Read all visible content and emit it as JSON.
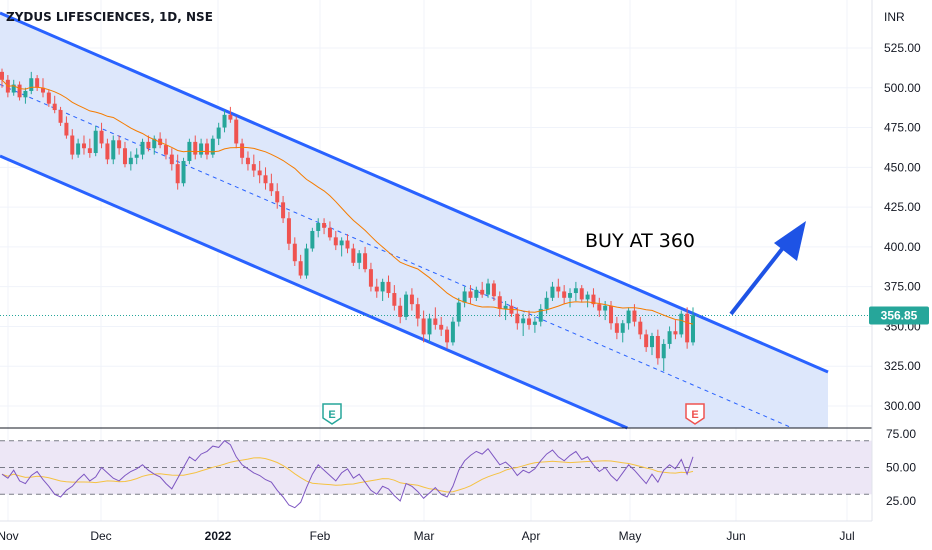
{
  "header": {
    "symbol_title": "ZYDUS LIFESCIENCES, 1D, NSE",
    "currency": "INR"
  },
  "annotation": {
    "text": "BUY AT 360"
  },
  "colors": {
    "up": "#26a69a",
    "down": "#ef5350",
    "channel": "#2962ff",
    "channel_fill": "#dde7fb",
    "ma": "#f57c00",
    "rsi": "#7e57c2",
    "rsi_ma": "#f5c242",
    "arrow": "#1e53e5",
    "price_tag": "#26a69a"
  },
  "chart_data": {
    "type": "candlestick",
    "title": "ZYDUS LIFESCIENCES, 1D, NSE",
    "ylabel": "INR",
    "ylim": [
      280,
      540
    ],
    "y_ticks": [
      "525.00",
      "500.00",
      "475.00",
      "450.00",
      "425.00",
      "400.00",
      "375.00",
      "350.00",
      "325.00",
      "300.00"
    ],
    "x_ticks": [
      "Nov",
      "Dec",
      "2022",
      "Feb",
      "Mar",
      "Apr",
      "May",
      "Jun",
      "Jul"
    ],
    "last_price": "356.85",
    "grid": true,
    "ohlc": [
      [
        510,
        512,
        500,
        505
      ],
      [
        505,
        508,
        494,
        497
      ],
      [
        497,
        505,
        495,
        502
      ],
      [
        502,
        504,
        492,
        494
      ],
      [
        494,
        500,
        490,
        498
      ],
      [
        498,
        510,
        496,
        506
      ],
      [
        506,
        508,
        498,
        500
      ],
      [
        500,
        506,
        494,
        497
      ],
      [
        497,
        499,
        488,
        490
      ],
      [
        490,
        495,
        484,
        486
      ],
      [
        486,
        488,
        476,
        478
      ],
      [
        478,
        482,
        468,
        470
      ],
      [
        470,
        474,
        455,
        458
      ],
      [
        458,
        468,
        456,
        465
      ],
      [
        465,
        470,
        458,
        462
      ],
      [
        462,
        468,
        456,
        459
      ],
      [
        459,
        476,
        457,
        473
      ],
      [
        473,
        478,
        462,
        465
      ],
      [
        465,
        468,
        452,
        455
      ],
      [
        455,
        470,
        452,
        467
      ],
      [
        467,
        470,
        458,
        462
      ],
      [
        462,
        466,
        450,
        452
      ],
      [
        452,
        460,
        448,
        456
      ],
      [
        456,
        462,
        452,
        458
      ],
      [
        458,
        468,
        455,
        466
      ],
      [
        466,
        470,
        460,
        462
      ],
      [
        462,
        470,
        458,
        468
      ],
      [
        468,
        472,
        462,
        464
      ],
      [
        464,
        468,
        455,
        458
      ],
      [
        458,
        462,
        448,
        452
      ],
      [
        452,
        458,
        436,
        440
      ],
      [
        440,
        456,
        438,
        454
      ],
      [
        454,
        468,
        452,
        466
      ],
      [
        466,
        470,
        455,
        458
      ],
      [
        458,
        468,
        456,
        465
      ],
      [
        465,
        468,
        455,
        458
      ],
      [
        458,
        470,
        456,
        468
      ],
      [
        468,
        478,
        464,
        475
      ],
      [
        475,
        486,
        472,
        483
      ],
      [
        483,
        488,
        478,
        480
      ],
      [
        480,
        482,
        462,
        465
      ],
      [
        465,
        468,
        452,
        456
      ],
      [
        456,
        460,
        448,
        452
      ],
      [
        452,
        458,
        444,
        448
      ],
      [
        448,
        454,
        440,
        445
      ],
      [
        445,
        450,
        436,
        440
      ],
      [
        440,
        446,
        432,
        435
      ],
      [
        435,
        440,
        424,
        428
      ],
      [
        428,
        432,
        415,
        418
      ],
      [
        418,
        422,
        398,
        402
      ],
      [
        402,
        406,
        388,
        391
      ],
      [
        391,
        395,
        380,
        382
      ],
      [
        382,
        402,
        380,
        399
      ],
      [
        399,
        412,
        397,
        410
      ],
      [
        410,
        418,
        406,
        415
      ],
      [
        415,
        418,
        408,
        412
      ],
      [
        412,
        416,
        404,
        406
      ],
      [
        406,
        410,
        398,
        401
      ],
      [
        401,
        406,
        394,
        404
      ],
      [
        404,
        408,
        396,
        399
      ],
      [
        399,
        402,
        388,
        390
      ],
      [
        390,
        398,
        386,
        396
      ],
      [
        396,
        400,
        384,
        386
      ],
      [
        386,
        390,
        372,
        375
      ],
      [
        375,
        380,
        368,
        372
      ],
      [
        372,
        380,
        366,
        378
      ],
      [
        378,
        382,
        368,
        371
      ],
      [
        371,
        376,
        360,
        363
      ],
      [
        363,
        368,
        352,
        356
      ],
      [
        356,
        372,
        354,
        370
      ],
      [
        370,
        374,
        360,
        364
      ],
      [
        364,
        368,
        350,
        355
      ],
      [
        355,
        360,
        340,
        345
      ],
      [
        345,
        358,
        340,
        355
      ],
      [
        355,
        362,
        348,
        351
      ],
      [
        351,
        356,
        344,
        348
      ],
      [
        348,
        350,
        336,
        340
      ],
      [
        340,
        356,
        338,
        353
      ],
      [
        353,
        368,
        350,
        365
      ],
      [
        365,
        375,
        362,
        372
      ],
      [
        372,
        376,
        364,
        368
      ],
      [
        368,
        375,
        366,
        373
      ],
      [
        373,
        378,
        368,
        370
      ],
      [
        370,
        380,
        368,
        377
      ],
      [
        377,
        379,
        366,
        369
      ],
      [
        369,
        372,
        356,
        361
      ],
      [
        361,
        366,
        354,
        363
      ],
      [
        363,
        367,
        356,
        358
      ],
      [
        358,
        362,
        348,
        352
      ],
      [
        352,
        358,
        344,
        355
      ],
      [
        355,
        360,
        348,
        351
      ],
      [
        351,
        356,
        346,
        353
      ],
      [
        353,
        364,
        350,
        361
      ],
      [
        361,
        372,
        358,
        368
      ],
      [
        368,
        378,
        366,
        375
      ],
      [
        375,
        380,
        368,
        372
      ],
      [
        372,
        376,
        364,
        368
      ],
      [
        368,
        374,
        362,
        371
      ],
      [
        371,
        378,
        366,
        374
      ],
      [
        374,
        376,
        365,
        367
      ],
      [
        367,
        372,
        362,
        370
      ],
      [
        370,
        374,
        362,
        364
      ],
      [
        364,
        368,
        356,
        360
      ],
      [
        360,
        366,
        354,
        363
      ],
      [
        363,
        366,
        348,
        352
      ],
      [
        352,
        356,
        342,
        346
      ],
      [
        346,
        354,
        340,
        352
      ],
      [
        352,
        362,
        348,
        360
      ],
      [
        360,
        364,
        350,
        353
      ],
      [
        353,
        356,
        342,
        345
      ],
      [
        345,
        348,
        334,
        337
      ],
      [
        337,
        346,
        332,
        344
      ],
      [
        344,
        348,
        326,
        330
      ],
      [
        330,
        342,
        322,
        339
      ],
      [
        339,
        350,
        336,
        347
      ],
      [
        347,
        354,
        342,
        345
      ],
      [
        345,
        360,
        343,
        358
      ],
      [
        358,
        362,
        336,
        340
      ],
      [
        340,
        362,
        338,
        357
      ]
    ],
    "rsi": {
      "levels": [
        30,
        50,
        70
      ],
      "ylim": [
        0,
        100
      ],
      "y_ticks": [
        "75.00",
        "50.00",
        "25.00"
      ],
      "values": [
        45,
        42,
        48,
        40,
        38,
        44,
        47,
        41,
        36,
        30,
        28,
        33,
        36,
        41,
        45,
        40,
        43,
        50,
        46,
        42,
        40,
        44,
        47,
        49,
        52,
        48,
        45,
        43,
        38,
        34,
        42,
        50,
        58,
        55,
        60,
        62,
        66,
        65,
        70,
        67,
        58,
        52,
        49,
        46,
        44,
        41,
        39,
        33,
        28,
        22,
        20,
        24,
        35,
        45,
        52,
        48,
        44,
        40,
        46,
        49,
        42,
        45,
        39,
        33,
        30,
        36,
        34,
        29,
        25,
        38,
        36,
        32,
        27,
        31,
        35,
        30,
        28,
        36,
        48,
        55,
        59,
        62,
        60,
        64,
        58,
        52,
        54,
        50,
        44,
        48,
        46,
        49,
        55,
        60,
        63,
        58,
        55,
        59,
        62,
        56,
        58,
        52,
        47,
        50,
        44,
        40,
        46,
        52,
        48,
        43,
        38,
        45,
        39,
        48,
        52,
        49,
        56,
        45,
        58
      ]
    }
  }
}
